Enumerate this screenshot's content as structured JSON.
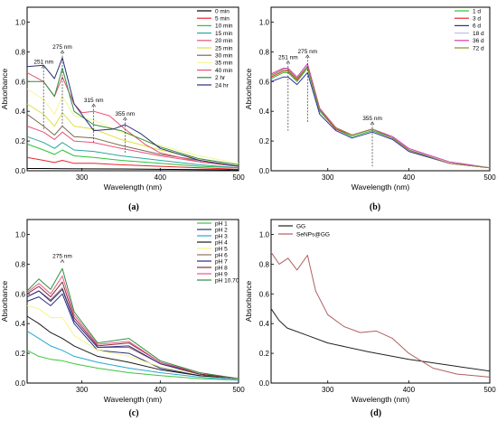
{
  "chart_data": [
    {
      "panel_label": "(a)",
      "type": "line",
      "xlabel": "Wavelength (nm)",
      "ylabel": "Absorbance",
      "xlim": [
        230,
        500
      ],
      "ylim": [
        0,
        1.1
      ],
      "xticks": [
        300,
        400,
        500
      ],
      "yticks": [
        0.0,
        0.2,
        0.4,
        0.6,
        0.8,
        1.0
      ],
      "legend_position": "top-right",
      "annotations": [
        {
          "text": "251 nm",
          "x": 251,
          "y": 0.66,
          "line_to": 0.28
        },
        {
          "text": "275 nm",
          "x": 275,
          "y": 0.76,
          "line_to": 0.3
        },
        {
          "text": "315 nm",
          "x": 315,
          "y": 0.4,
          "line_to": 0.18
        },
        {
          "text": "355 nm",
          "x": 355,
          "y": 0.31,
          "line_to": 0.12
        }
      ],
      "series": [
        {
          "name": "0 min",
          "color": "#000000",
          "x": [
            230,
            251,
            275,
            300,
            350,
            400,
            450,
            500
          ],
          "y": [
            0.015,
            0.015,
            0.014,
            0.013,
            0.012,
            0.01,
            0.008,
            0.006
          ]
        },
        {
          "name": "5 min",
          "color": "#e8252b",
          "x": [
            230,
            251,
            265,
            275,
            290,
            315,
            350,
            400,
            450,
            500
          ],
          "y": [
            0.09,
            0.07,
            0.055,
            0.07,
            0.05,
            0.05,
            0.04,
            0.03,
            0.02,
            0.01
          ]
        },
        {
          "name": "10 min",
          "color": "#2bc23a",
          "x": [
            230,
            251,
            265,
            275,
            290,
            315,
            350,
            400,
            450,
            500
          ],
          "y": [
            0.18,
            0.14,
            0.11,
            0.14,
            0.1,
            0.09,
            0.07,
            0.05,
            0.03,
            0.02
          ]
        },
        {
          "name": "15 min",
          "color": "#2aa7a0",
          "x": [
            230,
            251,
            265,
            275,
            290,
            315,
            350,
            400,
            450,
            500
          ],
          "y": [
            0.23,
            0.19,
            0.15,
            0.19,
            0.14,
            0.13,
            0.1,
            0.07,
            0.04,
            0.02
          ]
        },
        {
          "name": "20 min",
          "color": "#e8537f",
          "x": [
            230,
            251,
            265,
            275,
            290,
            315,
            350,
            400,
            450,
            500
          ],
          "y": [
            0.3,
            0.26,
            0.21,
            0.26,
            0.2,
            0.19,
            0.15,
            0.1,
            0.06,
            0.03
          ]
        },
        {
          "name": "25 min",
          "color": "#e0e040",
          "x": [
            230,
            251,
            265,
            275,
            290,
            315,
            350,
            400,
            450,
            500
          ],
          "y": [
            0.45,
            0.38,
            0.3,
            0.39,
            0.3,
            0.28,
            0.21,
            0.14,
            0.08,
            0.04
          ]
        },
        {
          "name": "30 min",
          "color": "#7a6a50",
          "x": [
            230,
            251,
            265,
            275,
            290,
            315,
            350,
            400,
            450,
            500
          ],
          "y": [
            0.38,
            0.3,
            0.24,
            0.3,
            0.23,
            0.22,
            0.17,
            0.11,
            0.07,
            0.03
          ]
        },
        {
          "name": "35 min",
          "color": "#f5f59a",
          "x": [
            230,
            251,
            265,
            275,
            290,
            315,
            350,
            400,
            450,
            500
          ],
          "y": [
            0.55,
            0.48,
            0.38,
            0.5,
            0.37,
            0.34,
            0.26,
            0.17,
            0.1,
            0.05
          ]
        },
        {
          "name": "40 min",
          "color": "#e85070",
          "x": [
            230,
            251,
            265,
            275,
            290,
            300,
            315,
            335,
            355,
            380,
            400,
            450,
            500
          ],
          "y": [
            0.66,
            0.6,
            0.5,
            0.63,
            0.45,
            0.39,
            0.4,
            0.37,
            0.28,
            0.18,
            0.12,
            0.06,
            0.03
          ]
        },
        {
          "name": "2 hr",
          "color": "#2f8f3f",
          "x": [
            230,
            251,
            265,
            275,
            290,
            315,
            350,
            400,
            450,
            500
          ],
          "y": [
            0.6,
            0.6,
            0.5,
            0.69,
            0.4,
            0.31,
            0.27,
            0.16,
            0.08,
            0.04
          ]
        },
        {
          "name": "24 hr",
          "color": "#2a2f7a",
          "x": [
            230,
            251,
            265,
            275,
            290,
            315,
            340,
            355,
            375,
            400,
            450,
            500
          ],
          "y": [
            0.7,
            0.71,
            0.62,
            0.76,
            0.45,
            0.27,
            0.28,
            0.31,
            0.25,
            0.15,
            0.07,
            0.03
          ]
        }
      ]
    },
    {
      "panel_label": "(b)",
      "type": "line",
      "xlabel": "Wavelength (nm)",
      "ylabel": "Absorbance",
      "xlim": [
        230,
        500
      ],
      "ylim": [
        0,
        1.1
      ],
      "xticks": [
        300,
        400,
        500
      ],
      "yticks": [
        0.0,
        0.2,
        0.4,
        0.6,
        0.8,
        1.0
      ],
      "legend_position": "top-right",
      "annotations": [
        {
          "text": "251 nm",
          "x": 251,
          "y": 0.69,
          "line_to": 0.27
        },
        {
          "text": "275 nm",
          "x": 275,
          "y": 0.73,
          "line_to": 0.32
        },
        {
          "text": "355 nm",
          "x": 355,
          "y": 0.28,
          "line_to": 0.03
        }
      ],
      "series": [
        {
          "name": "1 d",
          "color": "#2bc23a",
          "x": [
            230,
            245,
            251,
            262,
            275,
            290,
            310,
            330,
            355,
            380,
            400,
            450,
            500
          ],
          "y": [
            0.62,
            0.66,
            0.66,
            0.6,
            0.69,
            0.4,
            0.28,
            0.23,
            0.27,
            0.22,
            0.14,
            0.05,
            0.02
          ]
        },
        {
          "name": "3 d",
          "color": "#e8252b",
          "x": [
            230,
            245,
            251,
            262,
            275,
            290,
            310,
            330,
            355,
            380,
            400,
            450,
            500
          ],
          "y": [
            0.63,
            0.67,
            0.67,
            0.61,
            0.7,
            0.41,
            0.28,
            0.24,
            0.28,
            0.22,
            0.14,
            0.05,
            0.02
          ]
        },
        {
          "name": "6 d",
          "color": "#2a2f9a",
          "x": [
            230,
            245,
            251,
            262,
            275,
            290,
            310,
            330,
            355,
            380,
            400,
            450,
            500
          ],
          "y": [
            0.6,
            0.63,
            0.63,
            0.58,
            0.66,
            0.38,
            0.27,
            0.22,
            0.26,
            0.21,
            0.13,
            0.05,
            0.02
          ]
        },
        {
          "name": "18 d",
          "color": "#c0c0e0",
          "x": [
            230,
            245,
            251,
            262,
            275,
            290,
            310,
            330,
            355,
            380,
            400,
            450,
            500
          ],
          "y": [
            0.64,
            0.68,
            0.68,
            0.62,
            0.71,
            0.42,
            0.29,
            0.24,
            0.28,
            0.23,
            0.15,
            0.05,
            0.02
          ]
        },
        {
          "name": "36 d",
          "color": "#d040b0",
          "x": [
            230,
            245,
            251,
            262,
            275,
            290,
            310,
            330,
            355,
            380,
            400,
            450,
            500
          ],
          "y": [
            0.65,
            0.69,
            0.69,
            0.63,
            0.72,
            0.42,
            0.29,
            0.24,
            0.28,
            0.23,
            0.15,
            0.06,
            0.02
          ]
        },
        {
          "name": "72 d",
          "color": "#8a8a30",
          "x": [
            230,
            245,
            251,
            262,
            275,
            290,
            310,
            330,
            355,
            380,
            400,
            450,
            500
          ],
          "y": [
            0.64,
            0.68,
            0.68,
            0.62,
            0.7,
            0.41,
            0.29,
            0.24,
            0.28,
            0.22,
            0.14,
            0.05,
            0.02
          ]
        }
      ]
    },
    {
      "panel_label": "(c)",
      "type": "line",
      "xlabel": "Wavelength (nm)",
      "ylabel": "Absorbance",
      "xlim": [
        230,
        500
      ],
      "ylim": [
        0,
        1.1
      ],
      "xticks": [
        300,
        400,
        500
      ],
      "yticks": [
        0.0,
        0.2,
        0.4,
        0.6,
        0.8,
        1.0
      ],
      "legend_position": "top-right",
      "annotations": [
        {
          "text": "275 nm",
          "x": 275,
          "y": 0.78,
          "line_to": 0.78
        }
      ],
      "series": [
        {
          "name": "pH 1",
          "color": "#3cc43c",
          "x": [
            230,
            245,
            260,
            275,
            290,
            320,
            360,
            400,
            450,
            500
          ],
          "y": [
            0.22,
            0.18,
            0.16,
            0.15,
            0.13,
            0.1,
            0.07,
            0.05,
            0.03,
            0.02
          ]
        },
        {
          "name": "pH 2",
          "color": "#2a2f7a",
          "x": [
            230,
            245,
            260,
            275,
            290,
            320,
            360,
            400,
            450,
            500
          ],
          "y": [
            0.55,
            0.58,
            0.52,
            0.6,
            0.4,
            0.22,
            0.2,
            0.1,
            0.05,
            0.03
          ]
        },
        {
          "name": "pH 3",
          "color": "#2aa7d0",
          "x": [
            230,
            245,
            260,
            275,
            290,
            320,
            360,
            400,
            450,
            500
          ],
          "y": [
            0.35,
            0.3,
            0.25,
            0.22,
            0.18,
            0.14,
            0.1,
            0.07,
            0.04,
            0.02
          ]
        },
        {
          "name": "pH 4",
          "color": "#1a1a1a",
          "x": [
            230,
            245,
            260,
            275,
            290,
            320,
            360,
            400,
            450,
            500
          ],
          "y": [
            0.45,
            0.4,
            0.34,
            0.3,
            0.25,
            0.18,
            0.14,
            0.09,
            0.05,
            0.03
          ]
        },
        {
          "name": "pH 5",
          "color": "#f5f58a",
          "x": [
            230,
            245,
            260,
            275,
            290,
            320,
            360,
            400,
            450,
            500
          ],
          "y": [
            0.52,
            0.5,
            0.44,
            0.44,
            0.32,
            0.22,
            0.18,
            0.11,
            0.06,
            0.03
          ]
        },
        {
          "name": "pH 6",
          "color": "#9a7060",
          "x": [
            230,
            245,
            260,
            275,
            290,
            320,
            360,
            400,
            450,
            500
          ],
          "y": [
            0.58,
            0.62,
            0.56,
            0.64,
            0.42,
            0.24,
            0.24,
            0.13,
            0.06,
            0.03
          ]
        },
        {
          "name": "pH 7",
          "color": "#2a2a8a",
          "x": [
            230,
            245,
            260,
            275,
            290,
            320,
            360,
            400,
            450,
            500
          ],
          "y": [
            0.58,
            0.62,
            0.55,
            0.63,
            0.42,
            0.24,
            0.25,
            0.13,
            0.06,
            0.03
          ]
        },
        {
          "name": "pH 8",
          "color": "#8a2a3a",
          "x": [
            230,
            245,
            260,
            275,
            290,
            320,
            360,
            400,
            450,
            500
          ],
          "y": [
            0.6,
            0.65,
            0.58,
            0.68,
            0.44,
            0.25,
            0.27,
            0.14,
            0.06,
            0.03
          ]
        },
        {
          "name": "pH 9",
          "color": "#e85a8a",
          "x": [
            230,
            245,
            260,
            275,
            290,
            320,
            360,
            400,
            450,
            500
          ],
          "y": [
            0.61,
            0.67,
            0.6,
            0.72,
            0.46,
            0.26,
            0.28,
            0.14,
            0.07,
            0.03
          ]
        },
        {
          "name": "pH 10.70",
          "color": "#2f8f3f",
          "x": [
            230,
            245,
            260,
            275,
            290,
            320,
            360,
            400,
            450,
            500
          ],
          "y": [
            0.62,
            0.7,
            0.63,
            0.77,
            0.48,
            0.27,
            0.3,
            0.15,
            0.07,
            0.03
          ]
        }
      ]
    },
    {
      "panel_label": "(d)",
      "type": "line",
      "xlabel": "Wavelength (nm)",
      "ylabel": "Absorbance",
      "xlim": [
        230,
        500
      ],
      "ylim": [
        0,
        1.1
      ],
      "xticks": [
        300,
        400,
        500
      ],
      "yticks": [
        0.0,
        0.2,
        0.4,
        0.6,
        0.8,
        1.0
      ],
      "legend_position": "top-left",
      "annotations": [],
      "series": [
        {
          "name": "GG",
          "color": "#222222",
          "x": [
            230,
            240,
            250,
            275,
            300,
            350,
            400,
            450,
            500
          ],
          "y": [
            0.5,
            0.42,
            0.37,
            0.32,
            0.27,
            0.21,
            0.16,
            0.12,
            0.08
          ]
        },
        {
          "name": "SeNPs@GG",
          "color": "#b06060",
          "x": [
            230,
            240,
            251,
            262,
            275,
            285,
            300,
            320,
            340,
            360,
            380,
            400,
            430,
            460,
            500
          ],
          "y": [
            0.88,
            0.8,
            0.84,
            0.76,
            0.86,
            0.62,
            0.46,
            0.38,
            0.34,
            0.35,
            0.3,
            0.2,
            0.1,
            0.06,
            0.04
          ]
        }
      ]
    }
  ]
}
